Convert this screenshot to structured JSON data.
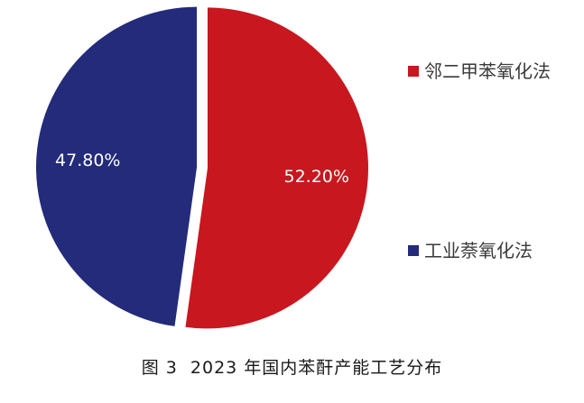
{
  "chart_data": {
    "type": "pie",
    "slices": [
      {
        "name": "邻二甲苯氧化法",
        "value": 52.2,
        "label": "52.20%",
        "color": "#c8171e"
      },
      {
        "name": "工业萘氧化法",
        "value": 47.8,
        "label": "47.80%",
        "color": "#232b7a"
      }
    ],
    "start_angle_deg": 0,
    "direction": "clockwise",
    "legend_position": "right",
    "caption": "图 3  2023 年国内苯酐产能工艺分布"
  }
}
